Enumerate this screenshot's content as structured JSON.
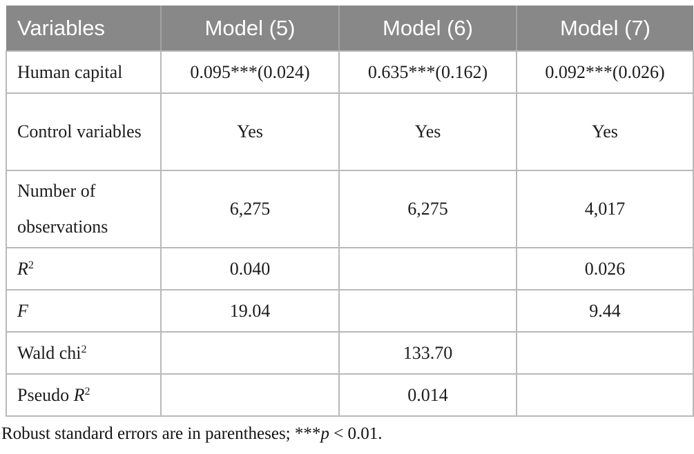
{
  "table": {
    "columns": [
      {
        "id": "variables",
        "label": "Variables"
      },
      {
        "id": "model-5",
        "label": "Model (5)"
      },
      {
        "id": "model-6",
        "label": "Model (6)"
      },
      {
        "id": "model-7",
        "label": "Model (7)"
      }
    ],
    "rows": [
      {
        "id": "human-capital",
        "tall": false,
        "label": [
          {
            "text": "Human capital",
            "style": "normal"
          }
        ],
        "values": [
          "0.095***(0.024)",
          "0.635***(0.162)",
          "0.092***(0.026)"
        ]
      },
      {
        "id": "control-variables",
        "tall": true,
        "label": [
          {
            "text": "Control variables",
            "style": "normal"
          }
        ],
        "values": [
          "Yes",
          "Yes",
          "Yes"
        ]
      },
      {
        "id": "number-of-observations",
        "tall": true,
        "label": [
          {
            "text": "Number of observations",
            "style": "normal"
          }
        ],
        "values": [
          "6,275",
          "6,275",
          "4,017"
        ]
      },
      {
        "id": "r-squared",
        "tall": false,
        "label": [
          {
            "text": "R",
            "style": "italic"
          },
          {
            "text": "2",
            "style": "sup"
          }
        ],
        "values": [
          "0.040",
          "",
          "0.026"
        ]
      },
      {
        "id": "f-statistic",
        "tall": false,
        "label": [
          {
            "text": "F",
            "style": "italic"
          }
        ],
        "values": [
          "19.04",
          "",
          "9.44"
        ]
      },
      {
        "id": "wald-chi-squared",
        "tall": false,
        "label": [
          {
            "text": "Wald chi",
            "style": "normal"
          },
          {
            "text": "2",
            "style": "sup"
          }
        ],
        "values": [
          "",
          "133.70",
          ""
        ]
      },
      {
        "id": "pseudo-r-squared",
        "tall": false,
        "label": [
          {
            "text": "Pseudo ",
            "style": "normal"
          },
          {
            "text": "R",
            "style": "italic"
          },
          {
            "text": "2",
            "style": "sup"
          }
        ],
        "values": [
          "",
          "0.014",
          ""
        ]
      }
    ],
    "footnote": [
      {
        "text": "Robust standard errors are in parentheses; ***",
        "style": "normal"
      },
      {
        "text": "p",
        "style": "italic"
      },
      {
        "text": " < 0.01.",
        "style": "normal"
      }
    ]
  },
  "colors": {
    "header_background": "#888888",
    "header_text": "#ffffff",
    "body_text": "#1c1c1c",
    "border": "#b9b9b9",
    "page_background": "#ffffff"
  }
}
